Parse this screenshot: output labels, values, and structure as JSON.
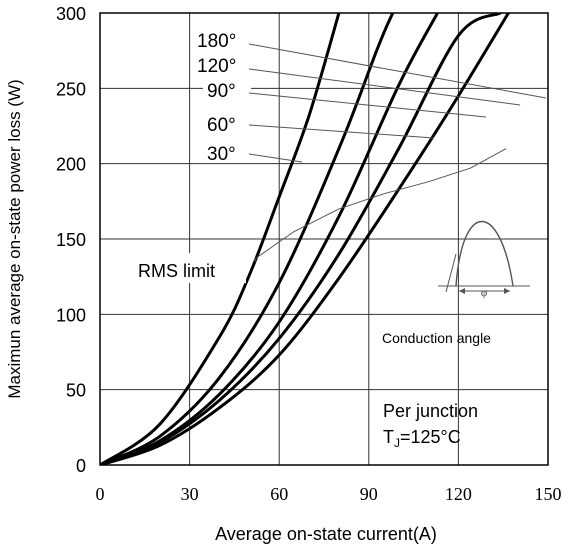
{
  "chart_data": {
    "type": "line",
    "ylabel": "Maximun average on-state power loss (W)",
    "xlabel": "Average on-state current(A)",
    "xlim": [
      0,
      150
    ],
    "ylim": [
      0,
      300
    ],
    "x_ticks": [
      0,
      30,
      60,
      90,
      120,
      150
    ],
    "y_ticks": [
      0,
      50,
      100,
      150,
      200,
      250,
      300
    ],
    "grid": true,
    "series": [
      {
        "name": "180°",
        "points": [
          [
            0,
            0
          ],
          [
            20,
            13
          ],
          [
            40,
            38
          ],
          [
            60,
            73
          ],
          [
            80,
            124
          ],
          [
            100,
            183
          ],
          [
            120,
            245
          ],
          [
            150,
            344
          ]
        ]
      },
      {
        "name": "120°",
        "points": [
          [
            0,
            0
          ],
          [
            20,
            15
          ],
          [
            40,
            43
          ],
          [
            60,
            84
          ],
          [
            80,
            140
          ],
          [
            100,
            210
          ],
          [
            120,
            285
          ],
          [
            134,
            300
          ]
        ]
      },
      {
        "name": "90°",
        "points": [
          [
            0,
            0
          ],
          [
            20,
            16
          ],
          [
            40,
            47
          ],
          [
            60,
            95
          ],
          [
            80,
            165
          ],
          [
            100,
            252
          ],
          [
            113,
            300
          ]
        ]
      },
      {
        "name": "60°",
        "points": [
          [
            0,
            0
          ],
          [
            20,
            19
          ],
          [
            40,
            58
          ],
          [
            60,
            121
          ],
          [
            80,
            210
          ],
          [
            93,
            277
          ],
          [
            98,
            300
          ]
        ]
      },
      {
        "name": "30°",
        "points": [
          [
            0,
            0
          ],
          [
            20,
            27
          ],
          [
            40,
            85
          ],
          [
            50,
            126
          ],
          [
            60,
            178
          ],
          [
            70,
            232
          ],
          [
            80,
            300
          ]
        ]
      }
    ],
    "rms_limit": {
      "label": "RMS limit",
      "points": [
        [
          52,
          137
        ],
        [
          65,
          155
        ],
        [
          80,
          170
        ],
        [
          95,
          180
        ],
        [
          110,
          188
        ],
        [
          124,
          197
        ],
        [
          136,
          210
        ]
      ]
    },
    "annotations": {
      "conduction_angle": "Conduction angle",
      "phi_symbol": "φ",
      "junction_line1": "Per junction",
      "junction_tj_main": "T",
      "junction_tj_sub": "J",
      "junction_tj_rest": "=125°C"
    }
  }
}
